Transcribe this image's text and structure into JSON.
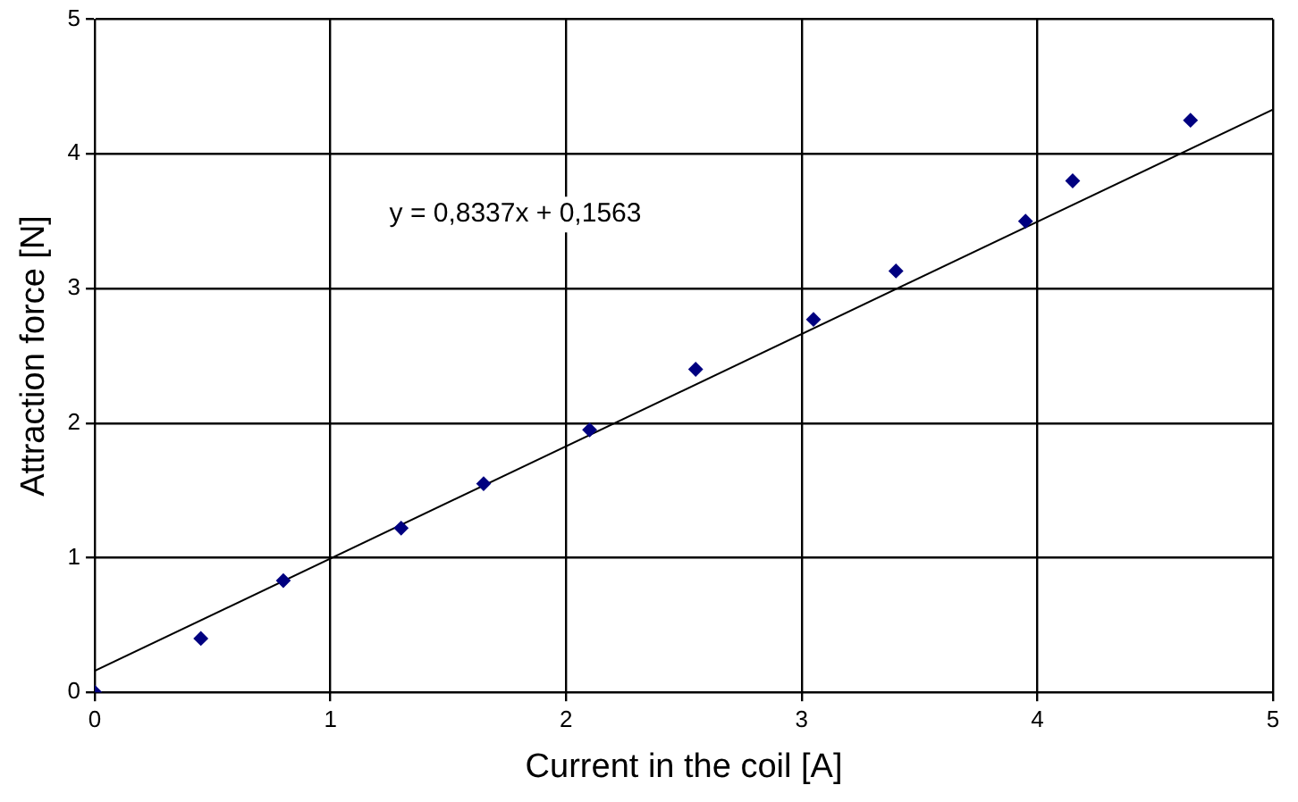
{
  "chart_data": {
    "type": "scatter",
    "xlabel": "Current in the coil [A]",
    "ylabel": "Attraction force [N]",
    "x": [
      0,
      0.45,
      0.8,
      1.3,
      1.65,
      2.1,
      2.55,
      3.05,
      3.4,
      3.95,
      4.15,
      4.65
    ],
    "series": [
      {
        "color": "#000080",
        "marker": "diamond",
        "values": [
          0,
          0.4,
          0.83,
          1.22,
          1.55,
          1.95,
          2.4,
          2.77,
          3.13,
          3.5,
          3.8,
          4.25
        ]
      },
      {
        "type": "line",
        "color": "#000000",
        "marker": "none",
        "x": [
          0,
          5
        ],
        "values": [
          0.16,
          4.33
        ]
      }
    ],
    "xlim": [
      0,
      5
    ],
    "ylim": [
      0,
      5
    ],
    "xticks": [
      0,
      1,
      2,
      3,
      4,
      5
    ],
    "yticks": [
      0,
      1,
      2,
      3,
      4,
      5
    ],
    "grid": true,
    "legend": false,
    "annotations": [
      "y = 0,8337x + 0,1563"
    ]
  }
}
